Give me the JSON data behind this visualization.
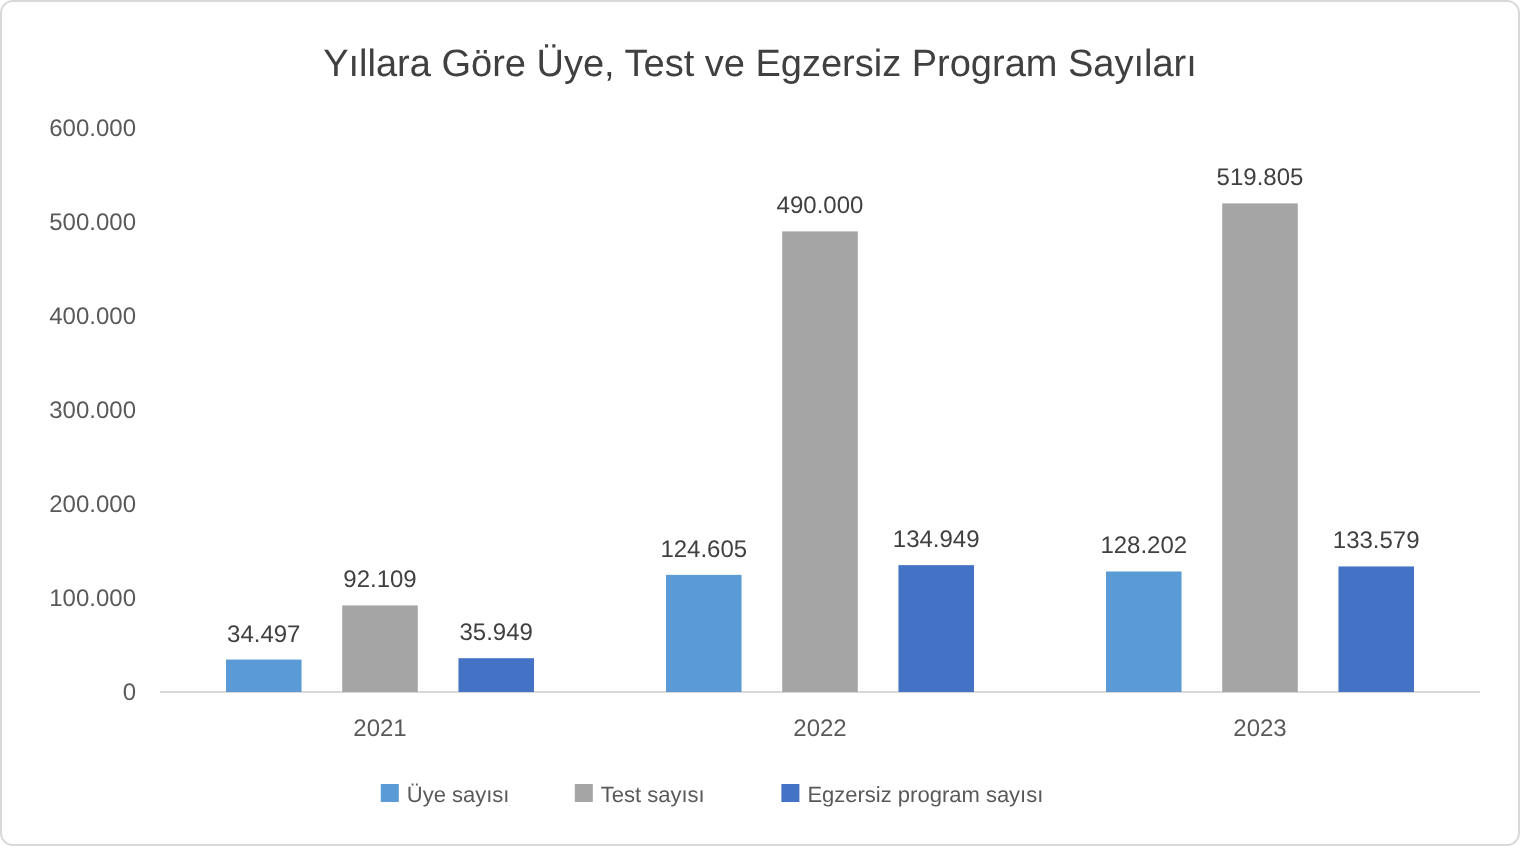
{
  "chart_data": {
    "type": "bar",
    "title": "Yıllara Göre Üye, Test ve Egzersiz Program Sayıları",
    "categories": [
      "2021",
      "2022",
      "2023"
    ],
    "series": [
      {
        "name": "Üye sayısı",
        "color": "#5b9bd5",
        "values": [
          34497,
          124605,
          128202
        ],
        "value_labels": [
          "34.497",
          "124.605",
          "128.202"
        ]
      },
      {
        "name": "Test sayısı",
        "color": "#a5a5a5",
        "values": [
          92109,
          490000,
          519805
        ],
        "value_labels": [
          "92.109",
          "490.000",
          "519.805"
        ]
      },
      {
        "name": "Egzersiz program sayısı",
        "color": "#4472c4",
        "values": [
          35949,
          134949,
          133579
        ],
        "value_labels": [
          "35.949",
          "134.949",
          "133.579"
        ]
      }
    ],
    "ylim": [
      0,
      600000
    ],
    "yticks": [
      0,
      {
        "value": 100000,
        "label": "100.000"
      },
      {
        "value": 200000,
        "label": "200.000"
      },
      {
        "value": 300000,
        "label": "300.000"
      },
      {
        "value": 400000,
        "label": "400.000"
      },
      {
        "value": 500000,
        "label": "500.000"
      },
      {
        "value": 600000,
        "label": "600.000"
      }
    ],
    "legend": "bottom"
  }
}
